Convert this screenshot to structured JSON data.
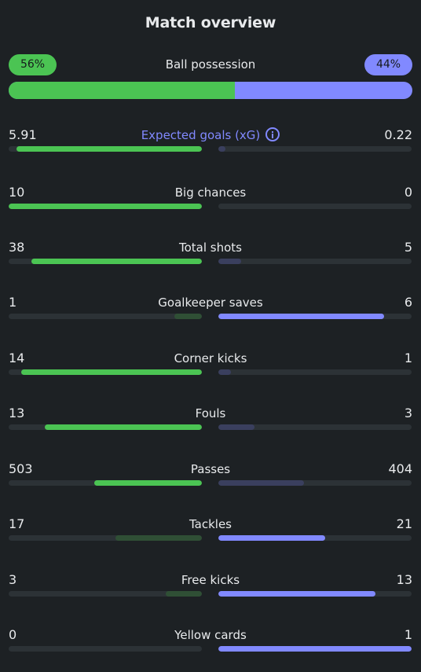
{
  "title": "Match overview",
  "possession": {
    "label": "Ball possession",
    "home": "56%",
    "away": "44%",
    "home_fraction": 0.56
  },
  "colors": {
    "home": "#4bc453",
    "away": "#8189ff",
    "background": "#1d2124"
  },
  "stats": [
    {
      "label": "Expected goals (xG)",
      "home": "5.91",
      "away": "0.22",
      "home_fill": 0.96,
      "away_fill": 0.036,
      "info_icon": true
    },
    {
      "label": "Big chances",
      "home": "10",
      "away": "0",
      "home_fill": 1.0,
      "away_fill": 0.0
    },
    {
      "label": "Total shots",
      "home": "38",
      "away": "5",
      "home_fill": 0.884,
      "away_fill": 0.116
    },
    {
      "label": "Goalkeeper saves",
      "home": "1",
      "away": "6",
      "home_fill": 0.143,
      "away_fill": 0.857
    },
    {
      "label": "Corner kicks",
      "home": "14",
      "away": "1",
      "home_fill": 0.933,
      "away_fill": 0.067
    },
    {
      "label": "Fouls",
      "home": "13",
      "away": "3",
      "home_fill": 0.813,
      "away_fill": 0.188
    },
    {
      "label": "Passes",
      "home": "503",
      "away": "404",
      "home_fill": 0.555,
      "away_fill": 0.445
    },
    {
      "label": "Tackles",
      "home": "17",
      "away": "21",
      "home_fill": 0.447,
      "away_fill": 0.553
    },
    {
      "label": "Free kicks",
      "home": "3",
      "away": "13",
      "home_fill": 0.188,
      "away_fill": 0.813
    },
    {
      "label": "Yellow cards",
      "home": "0",
      "away": "1",
      "home_fill": 0.0,
      "away_fill": 1.0
    }
  ]
}
